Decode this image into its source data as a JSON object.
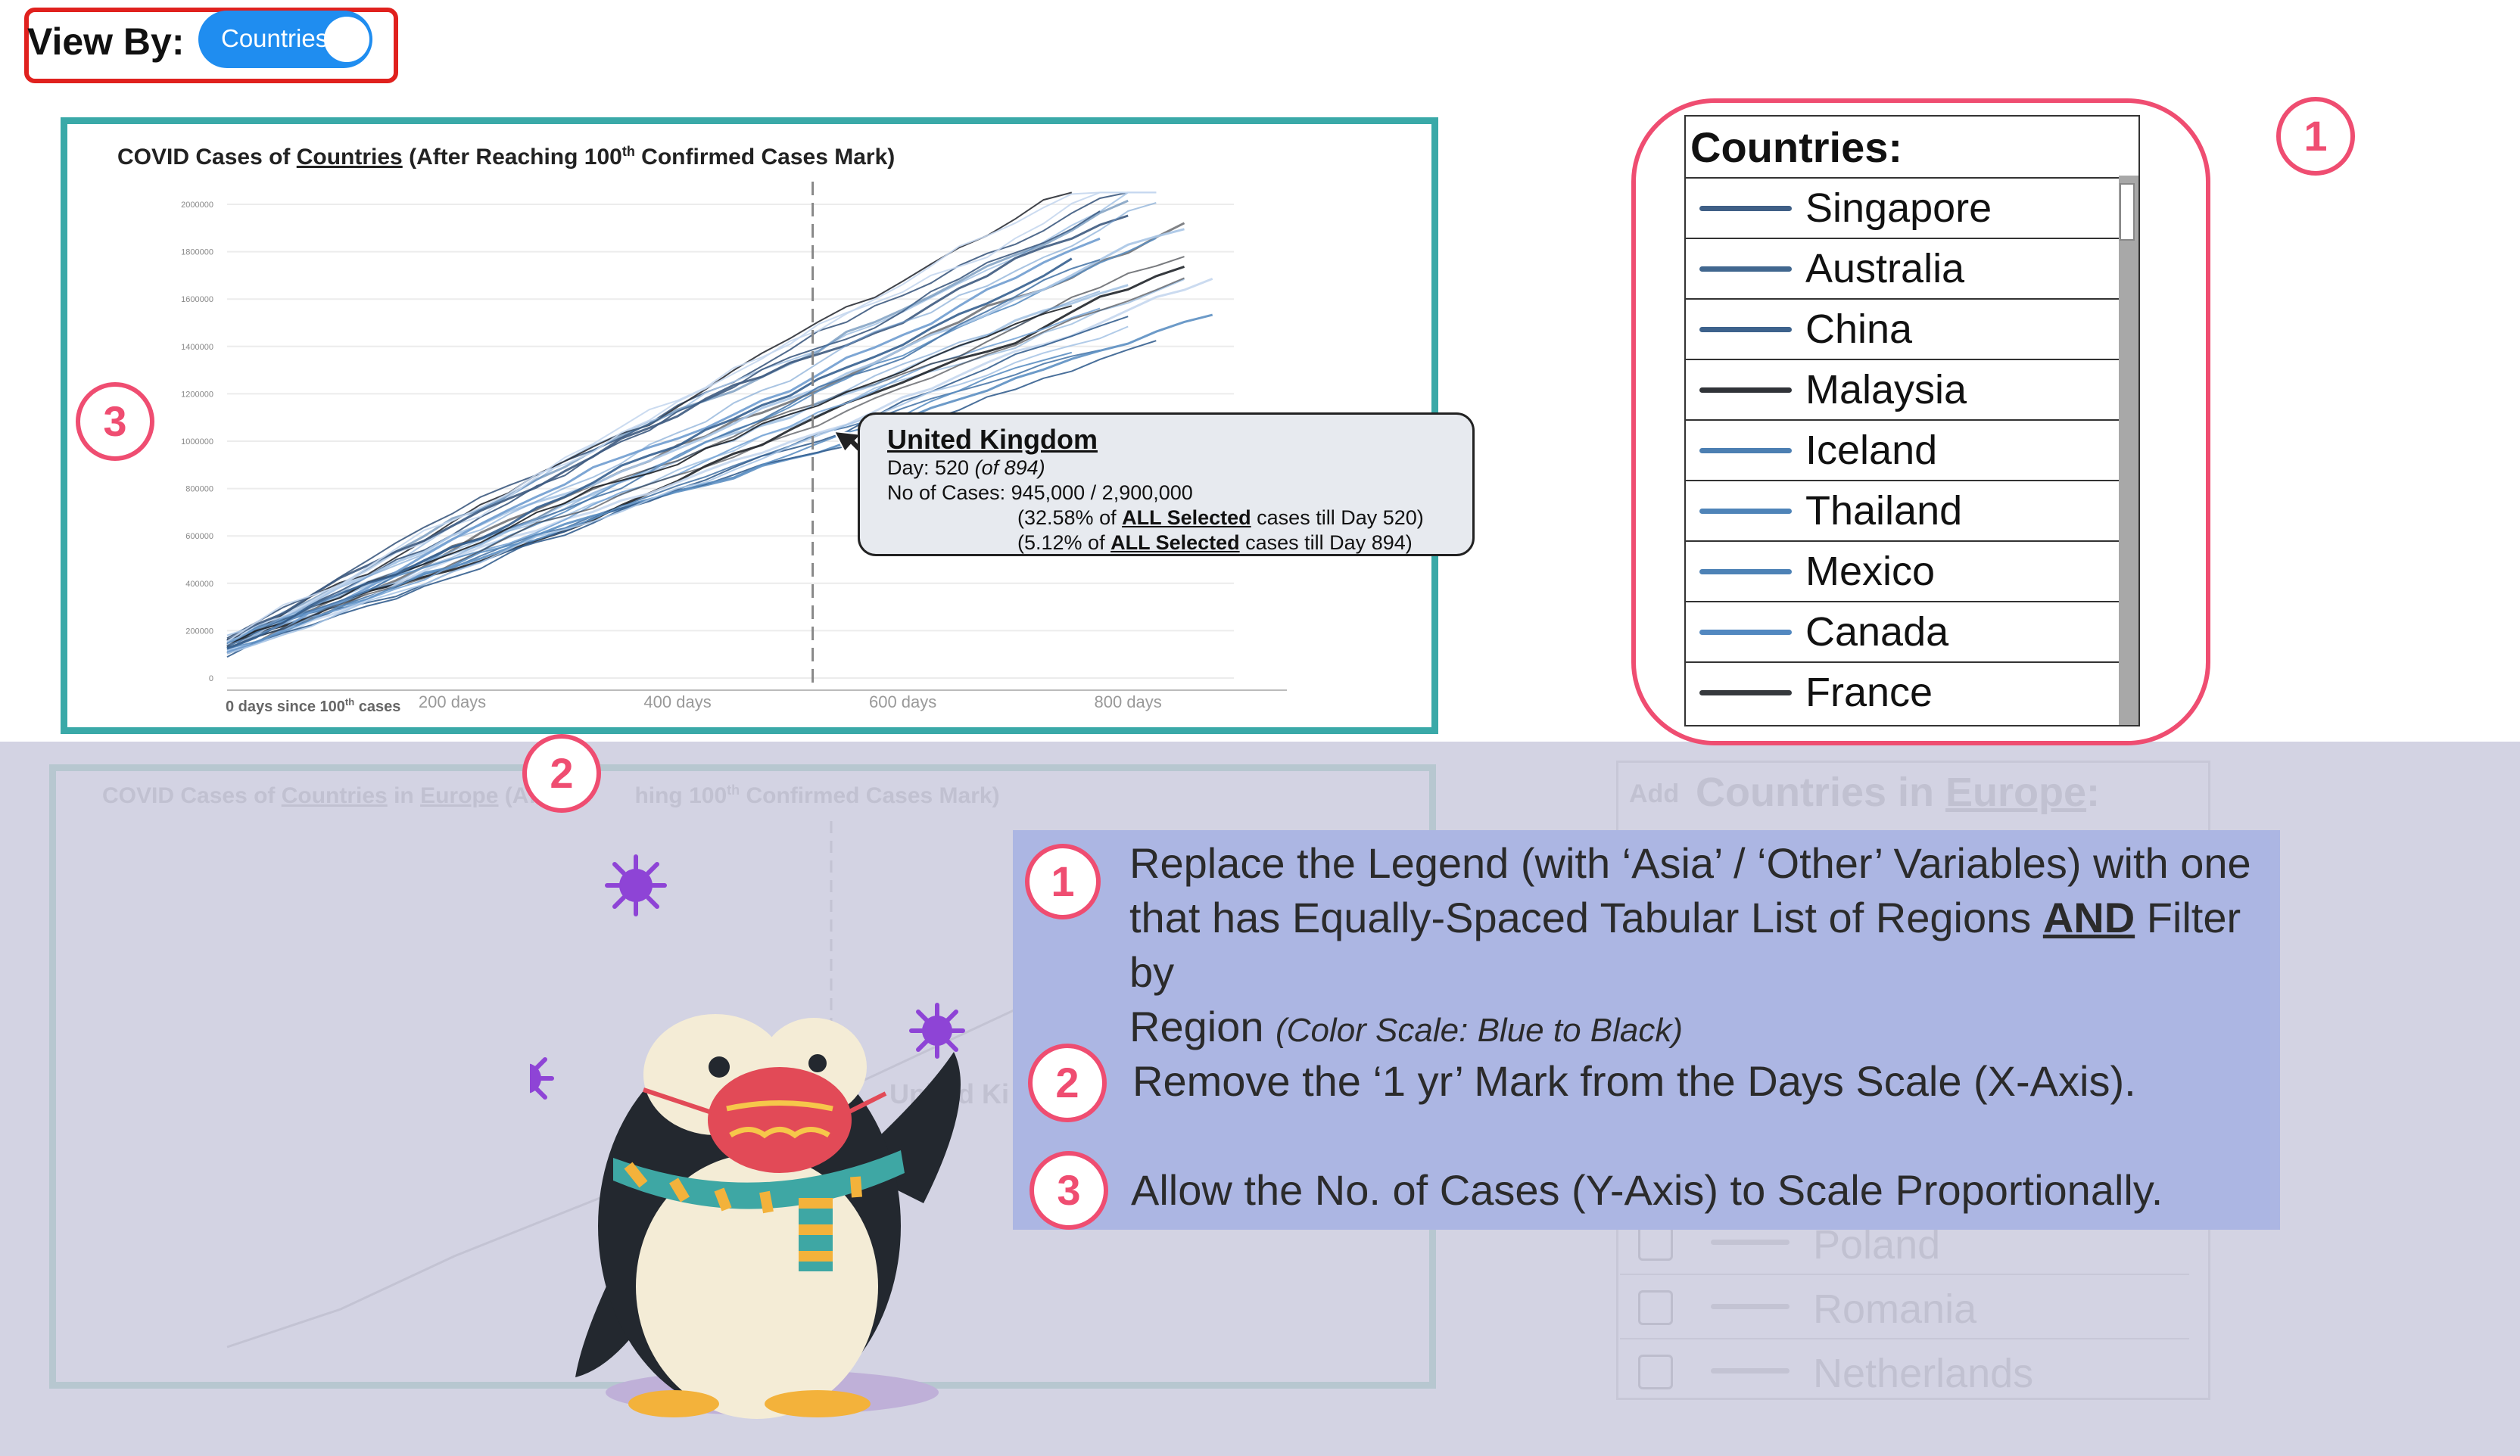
{
  "view_by": {
    "label": "View By:",
    "toggle_text": "Countries",
    "toggle_color": "#1f8df0"
  },
  "chart": {
    "title_prefix": "COVID Cases of ",
    "title_countries": "Countries",
    "title_mid": " (After Reaching  100",
    "title_sup": "th",
    "title_suffix": " Confirmed Cases Mark)",
    "x_origin_label": "0 days since 100",
    "x_origin_sup": "th",
    "x_origin_tail": " cases",
    "x_ticks": [
      "200 days",
      "400 days",
      "600 days",
      "800 days"
    ],
    "y_ticks": [
      "2000000",
      "1800000",
      "1600000",
      "1400000",
      "1200000",
      "1000000",
      "800000",
      "600000",
      "400000",
      "200000",
      "0"
    ],
    "frame_color": "#3aa9a8"
  },
  "chart_data": {
    "type": "line",
    "x_unit": "days since 100th cases",
    "xlim": [
      0,
      894
    ],
    "ylim": [
      0,
      2000000
    ],
    "x_ticks": [
      0,
      200,
      400,
      600,
      800
    ],
    "y_ticks": [
      0,
      200000,
      400000,
      600000,
      800000,
      1000000,
      1200000,
      1400000,
      1600000,
      1800000,
      2000000
    ],
    "highlight_day": 520,
    "grid": true,
    "color_scale": "blue to black"
  },
  "tooltip": {
    "country": "United Kingdom",
    "day_label": "Day: 520 ",
    "day_of": "(of 894)",
    "cases_label": "No of Cases:  945,000 / 2,900,000",
    "pct1_a": "(32.58% of ",
    "pct1_b": "ALL Selected",
    "pct1_c": " cases till Day 520)",
    "pct2_a": "(5.12% of ",
    "pct2_b": "ALL Selected",
    "pct2_c": " cases till Day 894)"
  },
  "legend": {
    "header": "Countries:",
    "items": [
      {
        "name": "Singapore",
        "color": "#3f5f86"
      },
      {
        "name": "Australia",
        "color": "#41678f"
      },
      {
        "name": "China",
        "color": "#3d628c"
      },
      {
        "name": "Malaysia",
        "color": "#303338"
      },
      {
        "name": "Iceland",
        "color": "#4c7fb2"
      },
      {
        "name": "Thailand",
        "color": "#4f84b8"
      },
      {
        "name": "Mexico",
        "color": "#4d82b6"
      },
      {
        "name": "Canada",
        "color": "#5288c0"
      },
      {
        "name": "France",
        "color": "#36393d"
      }
    ]
  },
  "markers": {
    "one": "1",
    "two": "2",
    "three": "3"
  },
  "lower_mock": {
    "title_prefix": "COVID Cases of ",
    "title_countries": "Countries",
    "title_in": " in ",
    "title_region": "Europe",
    "title_rest": " (Aft",
    "title_tail": "hing  100",
    "title_sup": "th",
    "title_end": " Confirmed Cases Mark)",
    "add_label": "Add",
    "header_prefix": "Countries in ",
    "header_region": "Europe",
    "header_colon": ":",
    "tooltip_fragment": "United Ki",
    "rows": [
      "Poland",
      "Romania",
      "Netherlands"
    ]
  },
  "notes": {
    "n1_line1": "Replace the Legend (with ‘Asia’ / ‘Other’ Variables) with one",
    "n1_line2a": "that has Equally-Spaced Tabular List of Regions ",
    "n1_line2b": "AND",
    "n1_line2c": " Filter by",
    "n1_line3a": "Region ",
    "n1_line3b": "(Color Scale: Blue to Black)",
    "n2": "Remove the ‘1 yr’ Mark from the Days Scale (X-Axis).",
    "n3": "Allow the No. of Cases (Y-Axis) to Scale Proportionally.",
    "bg_color": "#acb6e3",
    "circle_color": "#ef4d71"
  }
}
